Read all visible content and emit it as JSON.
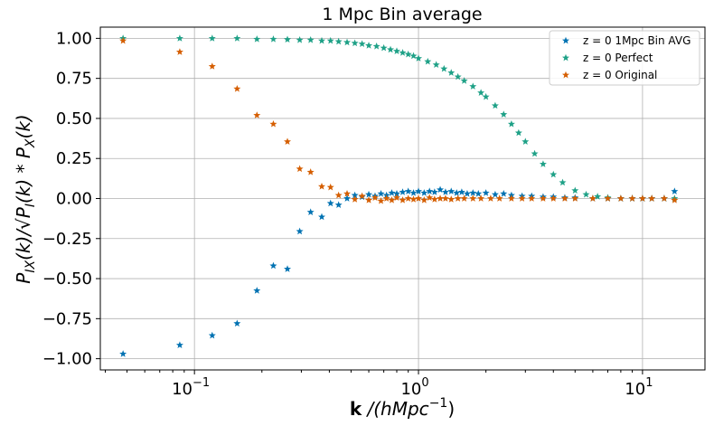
{
  "chart_data": {
    "type": "scatter",
    "title": "1 Mpc Bin average",
    "xlabel_bold": "k",
    "xlabel_rest": " /(hMpc",
    "xlabel_sup": "−1",
    "xlabel_end": ")",
    "ylabel_a": "P",
    "ylabel_a_sub": "IX",
    "ylabel_b": "(k)/√P",
    "ylabel_b_sub": "I",
    "ylabel_c": "(k) * P",
    "ylabel_c_sub": "X",
    "ylabel_d": "(k)",
    "xscale": "log",
    "xlim": [
      0.038,
      19
    ],
    "ylim": [
      -1.07,
      1.07
    ],
    "grid": true,
    "legend_position": "upper-right",
    "x_ticks": [
      {
        "value": 0.1,
        "base": "10",
        "exp": "−1"
      },
      {
        "value": 1,
        "base": "10",
        "exp": "0"
      },
      {
        "value": 10,
        "base": "10",
        "exp": "1"
      }
    ],
    "y_ticks": [
      {
        "value": 1.0,
        "label": "1.00"
      },
      {
        "value": 0.75,
        "label": "0.75"
      },
      {
        "value": 0.5,
        "label": "0.50"
      },
      {
        "value": 0.25,
        "label": "0.25"
      },
      {
        "value": 0.0,
        "label": "0.00"
      },
      {
        "value": -0.25,
        "label": "−0.25"
      },
      {
        "value": -0.5,
        "label": "−0.50"
      },
      {
        "value": -0.75,
        "label": "−0.75"
      },
      {
        "value": -1.0,
        "label": "−1.00"
      }
    ],
    "series": [
      {
        "name": "z = 0  1Mpc Bin AVG",
        "color": "#0072b2",
        "points": [
          [
            0.048,
            -0.97
          ],
          [
            0.086,
            -0.915
          ],
          [
            0.12,
            -0.855
          ],
          [
            0.155,
            -0.78
          ],
          [
            0.19,
            -0.575
          ],
          [
            0.225,
            -0.42
          ],
          [
            0.26,
            -0.44
          ],
          [
            0.295,
            -0.205
          ],
          [
            0.33,
            -0.085
          ],
          [
            0.37,
            -0.115
          ],
          [
            0.405,
            -0.03
          ],
          [
            0.44,
            -0.04
          ],
          [
            0.48,
            0.0
          ],
          [
            0.52,
            0.02
          ],
          [
            0.56,
            0.01
          ],
          [
            0.6,
            0.025
          ],
          [
            0.64,
            0.015
          ],
          [
            0.68,
            0.03
          ],
          [
            0.72,
            0.02
          ],
          [
            0.76,
            0.035
          ],
          [
            0.8,
            0.03
          ],
          [
            0.85,
            0.04
          ],
          [
            0.9,
            0.045
          ],
          [
            0.95,
            0.035
          ],
          [
            1.0,
            0.045
          ],
          [
            1.06,
            0.035
          ],
          [
            1.12,
            0.045
          ],
          [
            1.18,
            0.04
          ],
          [
            1.25,
            0.055
          ],
          [
            1.32,
            0.04
          ],
          [
            1.4,
            0.045
          ],
          [
            1.48,
            0.035
          ],
          [
            1.56,
            0.04
          ],
          [
            1.65,
            0.03
          ],
          [
            1.75,
            0.035
          ],
          [
            1.85,
            0.03
          ],
          [
            2.0,
            0.035
          ],
          [
            2.2,
            0.025
          ],
          [
            2.4,
            0.03
          ],
          [
            2.6,
            0.02
          ],
          [
            2.9,
            0.015
          ],
          [
            3.2,
            0.015
          ],
          [
            3.6,
            0.01
          ],
          [
            4.0,
            0.01
          ],
          [
            4.5,
            0.005
          ],
          [
            5.0,
            0.005
          ],
          [
            6.0,
            0.0
          ],
          [
            7.0,
            0.0
          ],
          [
            8.0,
            0.0
          ],
          [
            9.0,
            0.0
          ],
          [
            10.0,
            0.0
          ],
          [
            11.0,
            0.0
          ],
          [
            12.5,
            0.0
          ],
          [
            13.9,
            0.045
          ]
        ]
      },
      {
        "name": "z = 0  Perfect",
        "color": "#1fa187",
        "points": [
          [
            0.048,
            1.0
          ],
          [
            0.086,
            1.0
          ],
          [
            0.12,
            1.0
          ],
          [
            0.155,
            1.0
          ],
          [
            0.19,
            0.995
          ],
          [
            0.225,
            0.995
          ],
          [
            0.26,
            0.993
          ],
          [
            0.295,
            0.99
          ],
          [
            0.33,
            0.99
          ],
          [
            0.37,
            0.985
          ],
          [
            0.405,
            0.985
          ],
          [
            0.44,
            0.98
          ],
          [
            0.48,
            0.975
          ],
          [
            0.52,
            0.97
          ],
          [
            0.56,
            0.965
          ],
          [
            0.6,
            0.955
          ],
          [
            0.65,
            0.95
          ],
          [
            0.7,
            0.94
          ],
          [
            0.75,
            0.93
          ],
          [
            0.8,
            0.92
          ],
          [
            0.85,
            0.91
          ],
          [
            0.9,
            0.9
          ],
          [
            0.95,
            0.89
          ],
          [
            1.0,
            0.875
          ],
          [
            1.1,
            0.855
          ],
          [
            1.2,
            0.835
          ],
          [
            1.3,
            0.81
          ],
          [
            1.4,
            0.785
          ],
          [
            1.5,
            0.76
          ],
          [
            1.6,
            0.735
          ],
          [
            1.75,
            0.7
          ],
          [
            1.9,
            0.66
          ],
          [
            2.0,
            0.635
          ],
          [
            2.2,
            0.58
          ],
          [
            2.4,
            0.525
          ],
          [
            2.6,
            0.465
          ],
          [
            2.8,
            0.41
          ],
          [
            3.0,
            0.355
          ],
          [
            3.3,
            0.28
          ],
          [
            3.6,
            0.215
          ],
          [
            4.0,
            0.15
          ],
          [
            4.4,
            0.1
          ],
          [
            5.0,
            0.05
          ],
          [
            5.6,
            0.025
          ],
          [
            6.3,
            0.012
          ],
          [
            7.0,
            0.005
          ],
          [
            8.0,
            0.0
          ],
          [
            9.0,
            0.0
          ],
          [
            10.0,
            0.0
          ],
          [
            11.0,
            0.0
          ],
          [
            12.5,
            0.0
          ],
          [
            13.9,
            0.0
          ]
        ]
      },
      {
        "name": "z = 0  Original",
        "color": "#d55e00",
        "points": [
          [
            0.048,
            0.985
          ],
          [
            0.086,
            0.915
          ],
          [
            0.12,
            0.825
          ],
          [
            0.155,
            0.685
          ],
          [
            0.19,
            0.52
          ],
          [
            0.225,
            0.465
          ],
          [
            0.26,
            0.355
          ],
          [
            0.295,
            0.185
          ],
          [
            0.33,
            0.165
          ],
          [
            0.37,
            0.075
          ],
          [
            0.405,
            0.07
          ],
          [
            0.44,
            0.02
          ],
          [
            0.48,
            0.03
          ],
          [
            0.52,
            -0.005
          ],
          [
            0.56,
            0.015
          ],
          [
            0.6,
            -0.01
          ],
          [
            0.64,
            0.005
          ],
          [
            0.68,
            -0.015
          ],
          [
            0.72,
            0.0
          ],
          [
            0.76,
            -0.01
          ],
          [
            0.8,
            0.005
          ],
          [
            0.85,
            -0.01
          ],
          [
            0.9,
            0.0
          ],
          [
            0.95,
            -0.005
          ],
          [
            1.0,
            0.0
          ],
          [
            1.06,
            -0.01
          ],
          [
            1.12,
            0.005
          ],
          [
            1.18,
            -0.005
          ],
          [
            1.25,
            0.0
          ],
          [
            1.32,
            0.0
          ],
          [
            1.4,
            -0.005
          ],
          [
            1.5,
            0.0
          ],
          [
            1.6,
            0.0
          ],
          [
            1.75,
            0.0
          ],
          [
            1.9,
            0.0
          ],
          [
            2.1,
            0.0
          ],
          [
            2.3,
            0.0
          ],
          [
            2.6,
            0.0
          ],
          [
            2.9,
            0.0
          ],
          [
            3.2,
            0.0
          ],
          [
            3.6,
            0.0
          ],
          [
            4.0,
            0.0
          ],
          [
            4.5,
            0.0
          ],
          [
            5.0,
            0.0
          ],
          [
            6.0,
            0.0
          ],
          [
            7.0,
            0.0
          ],
          [
            8.0,
            0.0
          ],
          [
            9.0,
            0.0
          ],
          [
            10.0,
            0.0
          ],
          [
            11.0,
            0.0
          ],
          [
            12.5,
            0.0
          ],
          [
            13.9,
            -0.01
          ]
        ]
      }
    ]
  }
}
